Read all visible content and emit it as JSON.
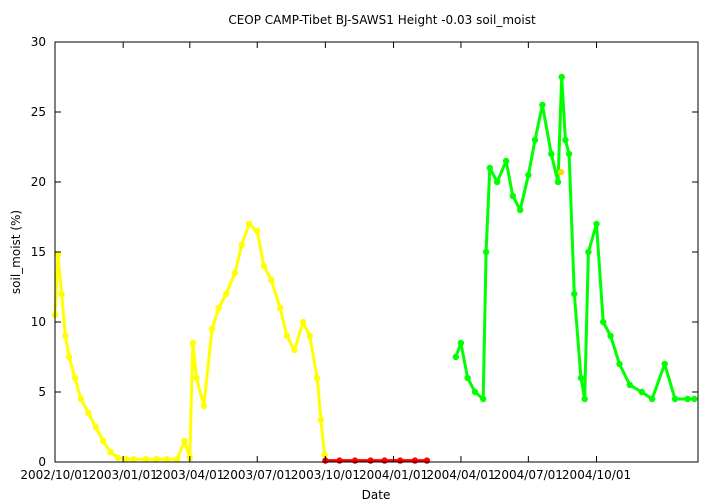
{
  "chart_data": {
    "type": "scatter",
    "title": "CEOP CAMP-Tibet BJ-SAWS1 Height -0.03 soil_moist",
    "xlabel": "Date",
    "ylabel": "soil_moist (%)",
    "xlim": [
      "2002-10-01",
      "2005-02-15"
    ],
    "ylim": [
      0,
      30
    ],
    "grid": false,
    "x_ticks": [
      "2002/10/01",
      "2003/01/01",
      "2003/04/01",
      "2003/07/01",
      "2003/10/01",
      "2004/01/01",
      "2004/04/01",
      "2004/07/01",
      "2004/10/01"
    ],
    "y_ticks": [
      0,
      5,
      10,
      15,
      20,
      25,
      30
    ],
    "series": [
      {
        "color": "#ffff00",
        "x": [
          "2002-10-01",
          "2002-10-05",
          "2002-10-10",
          "2002-10-15",
          "2002-10-20",
          "2002-10-28",
          "2002-11-05",
          "2002-11-15",
          "2002-11-25",
          "2002-12-05",
          "2002-12-15",
          "2002-12-25",
          "2003-01-05",
          "2003-01-15",
          "2003-02-01",
          "2003-02-15",
          "2003-03-01",
          "2003-03-15",
          "2003-03-25",
          "2003-04-01",
          "2003-04-05",
          "2003-04-10",
          "2003-04-20",
          "2003-05-01",
          "2003-05-10",
          "2003-05-20",
          "2003-06-01",
          "2003-06-10",
          "2003-06-20",
          "2003-07-01",
          "2003-07-10",
          "2003-07-20",
          "2003-08-01",
          "2003-08-10",
          "2003-08-20",
          "2003-09-01",
          "2003-09-10",
          "2003-09-20",
          "2003-09-25",
          "2003-09-30"
        ],
        "y": [
          10.5,
          14.8,
          12.0,
          9.0,
          7.5,
          6.0,
          4.5,
          3.5,
          2.5,
          1.5,
          0.7,
          0.3,
          0.2,
          0.2,
          0.2,
          0.2,
          0.2,
          0.2,
          1.5,
          0.3,
          8.5,
          6.0,
          4.0,
          9.5,
          11.0,
          12.0,
          13.5,
          15.5,
          17.0,
          16.5,
          14.0,
          13.0,
          11.0,
          9.0,
          8.0,
          10.0,
          9.0,
          6.0,
          3.0,
          0.5
        ]
      },
      {
        "color": "#ff0000",
        "x": [
          "2003-10-01",
          "2003-10-20",
          "2003-11-10",
          "2003-12-01",
          "2003-12-20",
          "2004-01-10",
          "2004-01-30",
          "2004-02-15"
        ],
        "y": [
          0.1,
          0.1,
          0.1,
          0.1,
          0.1,
          0.1,
          0.1,
          0.1
        ]
      },
      {
        "color": "#00ff00",
        "x": [
          "2004-03-25",
          "2004-04-01",
          "2004-04-10",
          "2004-04-20",
          "2004-05-01",
          "2004-05-05",
          "2004-05-10",
          "2004-05-20",
          "2004-06-01",
          "2004-06-10",
          "2004-06-20",
          "2004-07-01",
          "2004-07-10",
          "2004-07-20",
          "2004-08-01",
          "2004-08-10",
          "2004-08-15",
          "2004-08-20",
          "2004-08-25",
          "2004-09-01",
          "2004-09-10",
          "2004-09-15",
          "2004-09-20",
          "2004-10-01",
          "2004-10-10",
          "2004-10-20",
          "2004-11-01",
          "2004-11-15",
          "2004-12-01",
          "2004-12-15",
          "2005-01-01",
          "2005-01-15",
          "2005-02-01",
          "2005-02-10"
        ],
        "y": [
          7.5,
          8.5,
          6.0,
          5.0,
          4.5,
          15.0,
          21.0,
          20.0,
          21.5,
          19.0,
          18.0,
          20.5,
          23.0,
          25.5,
          22.0,
          20.0,
          27.5,
          23.0,
          22.0,
          12.0,
          6.0,
          4.5,
          15.0,
          17.0,
          10.0,
          9.0,
          7.0,
          5.5,
          5.0,
          4.5,
          7.0,
          4.5,
          4.5,
          4.5
        ]
      },
      {
        "color": "#ffd700",
        "x": [
          "2004-08-14"
        ],
        "y": [
          20.7
        ]
      }
    ]
  }
}
